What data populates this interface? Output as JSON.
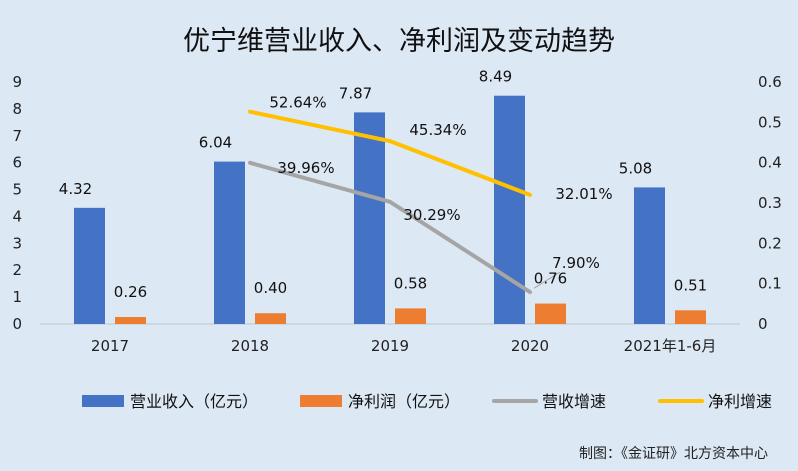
{
  "chart_data": {
    "type": "bar",
    "title": "优宁维营业收入、净利润及变动趋势",
    "categories": [
      "2017",
      "2018",
      "2019",
      "2020",
      "2021年1-6月"
    ],
    "ylim_left": [
      0,
      9
    ],
    "yticks_left": [
      "0",
      "1",
      "2",
      "3",
      "4",
      "5",
      "6",
      "7",
      "8",
      "9"
    ],
    "ylim_right": [
      0,
      0.6
    ],
    "yticks_right": [
      "0",
      "0.1",
      "0.2",
      "0.3",
      "0.4",
      "0.5",
      "0.6"
    ],
    "grid": false,
    "legend_position": "bottom",
    "series": [
      {
        "name": "营业收入（亿元）",
        "type": "bar",
        "axis": "left",
        "color": "#4472c4",
        "values": [
          4.32,
          6.04,
          7.87,
          8.49,
          5.08
        ],
        "labels": [
          "4.32",
          "6.04",
          "7.87",
          "8.49",
          "5.08"
        ]
      },
      {
        "name": "净利润（亿元）",
        "type": "bar",
        "axis": "left",
        "color": "#ed7d31",
        "values": [
          0.26,
          0.4,
          0.58,
          0.76,
          0.51
        ],
        "labels": [
          "0.26",
          "0.40",
          "0.58",
          "0.76",
          "0.51"
        ]
      },
      {
        "name": "营收增速",
        "type": "line",
        "axis": "right",
        "color": "#a5a5a5",
        "values": [
          null,
          0.3996,
          0.3029,
          0.079,
          null
        ],
        "labels": [
          "",
          "39.96%",
          "30.29%",
          "7.90%",
          ""
        ]
      },
      {
        "name": "净利增速",
        "type": "line",
        "axis": "right",
        "color": "#ffc000",
        "values": [
          null,
          0.5264,
          0.4534,
          0.3201,
          null
        ],
        "labels": [
          "",
          "52.64%",
          "45.34%",
          "32.01%",
          ""
        ]
      }
    ],
    "credit": "制图：《金证研》北方资本中心"
  }
}
